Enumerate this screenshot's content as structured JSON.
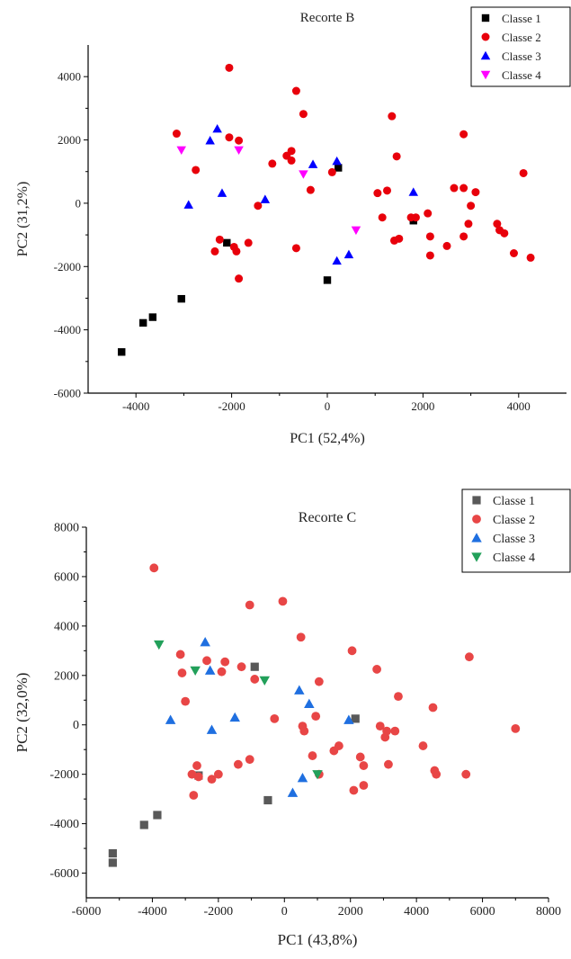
{
  "chart_data": [
    {
      "type": "scatter",
      "title": "Recorte B",
      "xlabel": "PC1 (52,4%)",
      "ylabel": "PC2 (31,2%)",
      "xlim": [
        -5000,
        5000
      ],
      "ylim": [
        -6000,
        5000
      ],
      "xticks": [
        -4000,
        -2000,
        0,
        2000,
        4000
      ],
      "yticks": [
        -6000,
        -4000,
        -2000,
        0,
        2000,
        4000
      ],
      "grid": false,
      "legend_position": "top-right",
      "series": [
        {
          "name": "Classe 1",
          "marker": "square",
          "color": "#000000",
          "points": [
            [
              -4300,
              -4700
            ],
            [
              -3850,
              -3780
            ],
            [
              -3650,
              -3600
            ],
            [
              -3050,
              -3020
            ],
            [
              -2100,
              -1250
            ],
            [
              0,
              -2430
            ],
            [
              230,
              1120
            ],
            [
              1800,
              -550
            ]
          ]
        },
        {
          "name": "Classe 2",
          "marker": "circle",
          "color": "#e8000b",
          "points": [
            [
              -3150,
              2200
            ],
            [
              -2750,
              1050
            ],
            [
              -2050,
              4280
            ],
            [
              -2050,
              2080
            ],
            [
              -1850,
              1980
            ],
            [
              -2250,
              -1150
            ],
            [
              -2350,
              -1520
            ],
            [
              -1950,
              -1380
            ],
            [
              -1900,
              -1520
            ],
            [
              -1650,
              -1250
            ],
            [
              -1850,
              -2380
            ],
            [
              -1450,
              -80
            ],
            [
              -1150,
              1250
            ],
            [
              -850,
              1500
            ],
            [
              -750,
              1350
            ],
            [
              -750,
              1650
            ],
            [
              -650,
              3550
            ],
            [
              -500,
              2820
            ],
            [
              -350,
              420
            ],
            [
              -650,
              -1420
            ],
            [
              100,
              980
            ],
            [
              1050,
              320
            ],
            [
              1150,
              -450
            ],
            [
              1250,
              400
            ],
            [
              1350,
              2750
            ],
            [
              1400,
              -1180
            ],
            [
              1450,
              1480
            ],
            [
              1500,
              -1120
            ],
            [
              1750,
              -450
            ],
            [
              1850,
              -450
            ],
            [
              2100,
              -320
            ],
            [
              2150,
              -1050
            ],
            [
              2150,
              -1650
            ],
            [
              2500,
              -1350
            ],
            [
              2650,
              480
            ],
            [
              2850,
              480
            ],
            [
              2850,
              2180
            ],
            [
              2850,
              -1050
            ],
            [
              2950,
              -650
            ],
            [
              3000,
              -80
            ],
            [
              3100,
              350
            ],
            [
              3550,
              -650
            ],
            [
              3600,
              -850
            ],
            [
              3700,
              -950
            ],
            [
              3900,
              -1580
            ],
            [
              4100,
              950
            ],
            [
              4250,
              -1720
            ]
          ]
        },
        {
          "name": "Classe 3",
          "marker": "triangle-up",
          "color": "#0000ff",
          "points": [
            [
              -2900,
              -50
            ],
            [
              -2450,
              1980
            ],
            [
              -2300,
              2350
            ],
            [
              -2200,
              320
            ],
            [
              -1300,
              120
            ],
            [
              -300,
              1230
            ],
            [
              200,
              1330
            ],
            [
              200,
              -1820
            ],
            [
              450,
              -1620
            ],
            [
              1800,
              350
            ]
          ]
        },
        {
          "name": "Classe 4",
          "marker": "triangle-down",
          "color": "#ff00ff",
          "points": [
            [
              -3050,
              1680
            ],
            [
              -1850,
              1680
            ],
            [
              -500,
              920
            ],
            [
              600,
              -850
            ]
          ]
        }
      ]
    },
    {
      "type": "scatter",
      "title": "Recorte C",
      "xlabel": "PC1 (43,8%)",
      "ylabel": "PC2 (32,0%)",
      "xlim": [
        -6000,
        8000
      ],
      "ylim": [
        -7000,
        8000
      ],
      "xticks": [
        -6000,
        -4000,
        -2000,
        0,
        2000,
        4000,
        6000,
        8000
      ],
      "yticks": [
        -6000,
        -4000,
        -2000,
        0,
        2000,
        4000,
        6000,
        8000
      ],
      "grid": false,
      "legend_position": "top-right",
      "series": [
        {
          "name": "Classe 1",
          "marker": "square",
          "color": "#595959",
          "points": [
            [
              -5200,
              -5200
            ],
            [
              -5200,
              -5580
            ],
            [
              -4250,
              -4050
            ],
            [
              -3850,
              -3650
            ],
            [
              -2600,
              -2050
            ],
            [
              -900,
              2350
            ],
            [
              -500,
              -3050
            ],
            [
              2150,
              250
            ]
          ]
        },
        {
          "name": "Classe 2",
          "marker": "circle",
          "color": "#e84646",
          "points": [
            [
              -3950,
              6350
            ],
            [
              -3150,
              2850
            ],
            [
              -3100,
              2100
            ],
            [
              -3000,
              950
            ],
            [
              -2800,
              -2000
            ],
            [
              -2750,
              -2850
            ],
            [
              -2650,
              -1650
            ],
            [
              -2600,
              -2100
            ],
            [
              -2350,
              2600
            ],
            [
              -2200,
              -2200
            ],
            [
              -2000,
              -2000
            ],
            [
              -1900,
              2150
            ],
            [
              -1800,
              2550
            ],
            [
              -1400,
              -1600
            ],
            [
              -1300,
              2350
            ],
            [
              -1050,
              4850
            ],
            [
              -1050,
              -1400
            ],
            [
              -900,
              1850
            ],
            [
              -300,
              250
            ],
            [
              -50,
              5000
            ],
            [
              500,
              3550
            ],
            [
              550,
              -50
            ],
            [
              600,
              -250
            ],
            [
              850,
              -1250
            ],
            [
              950,
              350
            ],
            [
              1050,
              1750
            ],
            [
              1050,
              -2000
            ],
            [
              1500,
              -1050
            ],
            [
              1650,
              -850
            ],
            [
              2050,
              3000
            ],
            [
              2100,
              -2650
            ],
            [
              2300,
              -1300
            ],
            [
              2400,
              -1650
            ],
            [
              2400,
              -2450
            ],
            [
              2800,
              2250
            ],
            [
              2900,
              -50
            ],
            [
              3050,
              -500
            ],
            [
              3100,
              -250
            ],
            [
              3150,
              -1600
            ],
            [
              3350,
              -250
            ],
            [
              3450,
              1150
            ],
            [
              4200,
              -850
            ],
            [
              4500,
              700
            ],
            [
              4550,
              -1850
            ],
            [
              4600,
              -2000
            ],
            [
              5500,
              -2000
            ],
            [
              5600,
              2750
            ],
            [
              7000,
              -150
            ]
          ]
        },
        {
          "name": "Classe 3",
          "marker": "triangle-up",
          "color": "#1f6fe0",
          "points": [
            [
              -3450,
              200
            ],
            [
              -2400,
              3350
            ],
            [
              -2250,
              2200
            ],
            [
              -2200,
              -200
            ],
            [
              -1500,
              300
            ],
            [
              250,
              -2750
            ],
            [
              450,
              1400
            ],
            [
              550,
              -2150
            ],
            [
              750,
              850
            ],
            [
              1950,
              200
            ]
          ]
        },
        {
          "name": "Classe 4",
          "marker": "triangle-down",
          "color": "#22a05a",
          "points": [
            [
              -3800,
              3250
            ],
            [
              -2700,
              2200
            ],
            [
              -600,
              1800
            ],
            [
              1000,
              -2000
            ]
          ]
        }
      ]
    }
  ]
}
